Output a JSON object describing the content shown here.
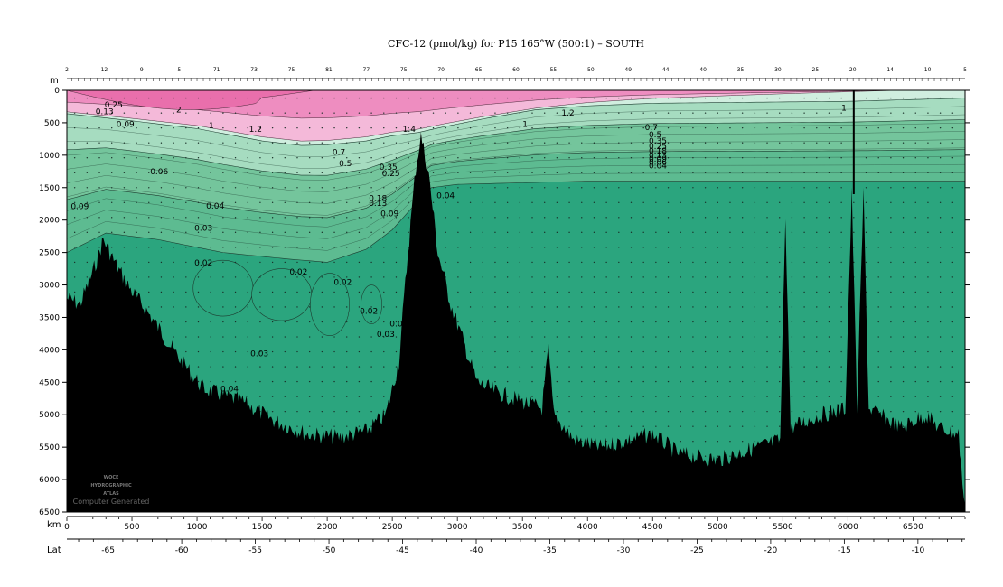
{
  "chart_data": {
    "type": "heatmap",
    "title": "CFC-12 (pmol/kg) for P15 165°W (500:1) – SOUTH",
    "ylabel": "m",
    "xlabel": "km",
    "lat_label": "Lat",
    "xlim": [
      0,
      6900
    ],
    "ylim": [
      0,
      6500
    ],
    "latlim": [
      -67.8,
      -6.8
    ],
    "x_ticks": [
      0,
      500,
      1000,
      1500,
      2000,
      2500,
      3000,
      3500,
      4000,
      4500,
      5000,
      5500,
      6000,
      6500
    ],
    "y_ticks": [
      0,
      500,
      1000,
      1500,
      2000,
      2500,
      3000,
      3500,
      4000,
      4500,
      5000,
      5500,
      6000,
      6500
    ],
    "lat_ticks": [
      -65,
      -60,
      -55,
      -50,
      -45,
      -40,
      -35,
      -30,
      -25,
      -20,
      -15,
      -10
    ],
    "station_numbers": [
      "2",
      "12",
      "9",
      "5",
      "71",
      "73",
      "75",
      "81",
      "77",
      "75",
      "70",
      "65",
      "60",
      "55",
      "50",
      "49",
      "44",
      "40",
      "35",
      "30",
      "25",
      "20",
      "14",
      "10",
      "5"
    ],
    "contour_levels": [
      0.02,
      0.03,
      0.04,
      0.06,
      0.09,
      0.13,
      0.18,
      0.25,
      0.35,
      0.5,
      0.7,
      1,
      1.2,
      1.4,
      2
    ],
    "colors": {
      "lt_0_03": "#2ba57e",
      "0_03_0_06": "#5dbb91",
      "0_06_0_25": "#74c59c",
      "0_25_0_7": "#a6dcc0",
      "0_7_1": "#d0eedf",
      "1_1_4": "#f4b9d9",
      "1_4_2": "#ee8dc0",
      "gt_2": "#e96fac",
      "bottom": "#000000"
    },
    "depth_1_0": [
      [
        0,
        360
      ],
      [
        500,
        470
      ],
      [
        1000,
        590
      ],
      [
        1500,
        780
      ],
      [
        1800,
        850
      ],
      [
        2000,
        840
      ],
      [
        2300,
        780
      ],
      [
        2500,
        700
      ],
      [
        2700,
        650
      ],
      [
        2900,
        560
      ],
      [
        3200,
        440
      ],
      [
        3600,
        300
      ],
      [
        4000,
        240
      ],
      [
        4500,
        200
      ],
      [
        5000,
        190
      ],
      [
        6000,
        170
      ],
      [
        6900,
        120
      ]
    ],
    "depth_0_03": [
      [
        0,
        2500
      ],
      [
        300,
        2200
      ],
      [
        700,
        2300
      ],
      [
        1200,
        2500
      ],
      [
        1700,
        2600
      ],
      [
        2000,
        2650
      ],
      [
        2300,
        2450
      ],
      [
        2500,
        2150
      ],
      [
        2700,
        1700
      ],
      [
        2800,
        1500
      ],
      [
        3000,
        1450
      ],
      [
        4000,
        1400
      ],
      [
        5000,
        1400
      ],
      [
        6900,
        1400
      ]
    ],
    "contour_labels": [
      {
        "text": "2",
        "x": 840,
        "y": 300
      },
      {
        "text": "1",
        "x": 1090,
        "y": 540
      },
      {
        "text": "1.2",
        "x": 1400,
        "y": 600
      },
      {
        "text": "1.4",
        "x": 2580,
        "y": 600
      },
      {
        "text": "1.2",
        "x": 3800,
        "y": 350
      },
      {
        "text": "1",
        "x": 3500,
        "y": 520
      },
      {
        "text": "1",
        "x": 5950,
        "y": 270
      },
      {
        "text": "0.7",
        "x": 2040,
        "y": 950
      },
      {
        "text": "0.5",
        "x": 2090,
        "y": 1130
      },
      {
        "text": "0.35",
        "x": 2400,
        "y": 1180
      },
      {
        "text": "0.25",
        "x": 2420,
        "y": 1280
      },
      {
        "text": "0.7",
        "x": 4440,
        "y": 570
      },
      {
        "text": "0.5",
        "x": 4470,
        "y": 680
      },
      {
        "text": "0.35",
        "x": 4470,
        "y": 780
      },
      {
        "text": "0.25",
        "x": 4470,
        "y": 860
      },
      {
        "text": "0.18",
        "x": 4470,
        "y": 930
      },
      {
        "text": "0.13",
        "x": 4470,
        "y": 1000
      },
      {
        "text": "0.09",
        "x": 4470,
        "y": 1060
      },
      {
        "text": "0.06",
        "x": 4470,
        "y": 1110
      },
      {
        "text": "0.04",
        "x": 4470,
        "y": 1160
      },
      {
        "text": "0.18",
        "x": 2320,
        "y": 1660
      },
      {
        "text": "0.13",
        "x": 2320,
        "y": 1740
      },
      {
        "text": "0.09",
        "x": 2410,
        "y": 1900
      },
      {
        "text": "0.04",
        "x": 2840,
        "y": 1620
      },
      {
        "text": "0.09",
        "x": 380,
        "y": 520
      },
      {
        "text": "0.13",
        "x": 220,
        "y": 330
      },
      {
        "text": "0.25",
        "x": 290,
        "y": 220
      },
      {
        "text": "0.06",
        "x": 640,
        "y": 1250
      },
      {
        "text": "0.09",
        "x": 30,
        "y": 1790
      },
      {
        "text": "0.04",
        "x": 1070,
        "y": 1780
      },
      {
        "text": "0.03",
        "x": 980,
        "y": 2120
      },
      {
        "text": "0.02",
        "x": 980,
        "y": 2660
      },
      {
        "text": "0.02",
        "x": 1710,
        "y": 2800
      },
      {
        "text": "0.02",
        "x": 2050,
        "y": 2960
      },
      {
        "text": "0.02",
        "x": 2250,
        "y": 3400
      },
      {
        "text": "0.04",
        "x": 2480,
        "y": 3600
      },
      {
        "text": "0.03",
        "x": 2380,
        "y": 3760
      },
      {
        "text": "0.03",
        "x": 1410,
        "y": 4060
      },
      {
        "text": "0.04",
        "x": 1180,
        "y": 4600
      }
    ]
  },
  "watermark": {
    "line1": "WOCE",
    "line2": "HYDROGRAPHIC",
    "line3": "ATLAS",
    "caption": "Computer Generated"
  }
}
